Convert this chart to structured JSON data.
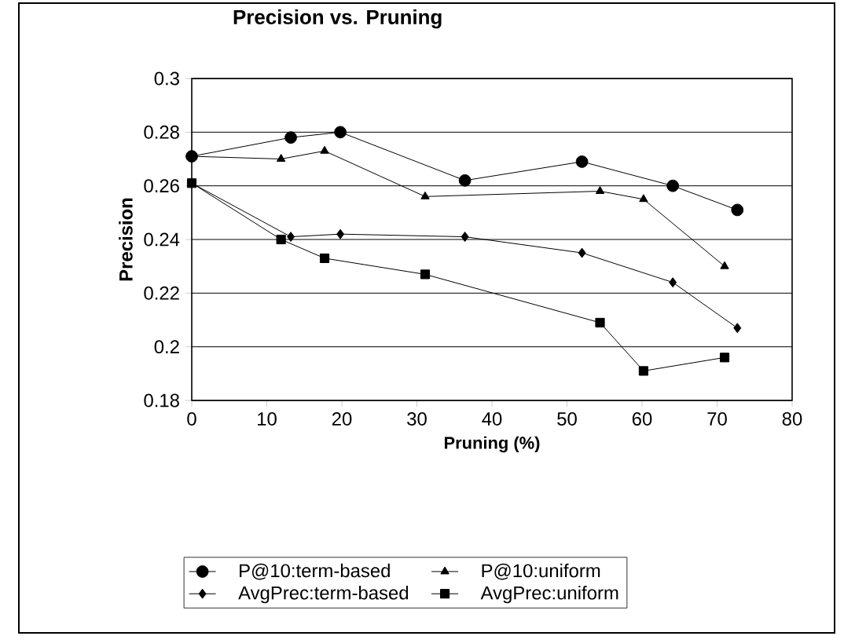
{
  "chart_data": {
    "type": "line",
    "title": "Precision vs. Pruning",
    "xlabel": "Pruning (%)",
    "ylabel": "Precision",
    "xlim": [
      0,
      80
    ],
    "xticks": [
      0,
      10,
      20,
      30,
      40,
      50,
      60,
      70,
      80
    ],
    "ylim": [
      0.18,
      0.3
    ],
    "yticks": [
      0.18,
      0.2,
      0.22,
      0.24,
      0.26,
      0.28,
      0.3
    ],
    "grid": "y",
    "legend": "bottom",
    "line_style": "solid",
    "series": [
      {
        "name": "P@10:term-based",
        "color": "#000000",
        "marker": "circle",
        "x": [
          0,
          13.2,
          19.8,
          36.4,
          52,
          64.1,
          72.7
        ],
        "values": [
          0.271,
          0.278,
          0.28,
          0.262,
          0.269,
          0.26,
          0.251
        ]
      },
      {
        "name": "P@10:uniform",
        "color": "#000000",
        "marker": "triangle",
        "x": [
          0,
          11.9,
          17.7,
          31.1,
          54.4,
          60.2,
          71
        ],
        "values": [
          0.271,
          0.27,
          0.273,
          0.256,
          0.258,
          0.255,
          0.23
        ]
      },
      {
        "name": "AvgPrec:term-based",
        "color": "#000000",
        "marker": "diamond",
        "x": [
          0,
          13.2,
          19.8,
          36.4,
          52,
          64.1,
          72.7
        ],
        "values": [
          0.261,
          0.241,
          0.242,
          0.241,
          0.235,
          0.224,
          0.207
        ]
      },
      {
        "name": "AvgPrec:uniform",
        "color": "#000000",
        "marker": "square",
        "x": [
          0,
          11.9,
          17.7,
          31.1,
          54.4,
          60.2,
          71
        ],
        "values": [
          0.261,
          0.24,
          0.233,
          0.227,
          0.209,
          0.191,
          0.196
        ]
      }
    ]
  }
}
